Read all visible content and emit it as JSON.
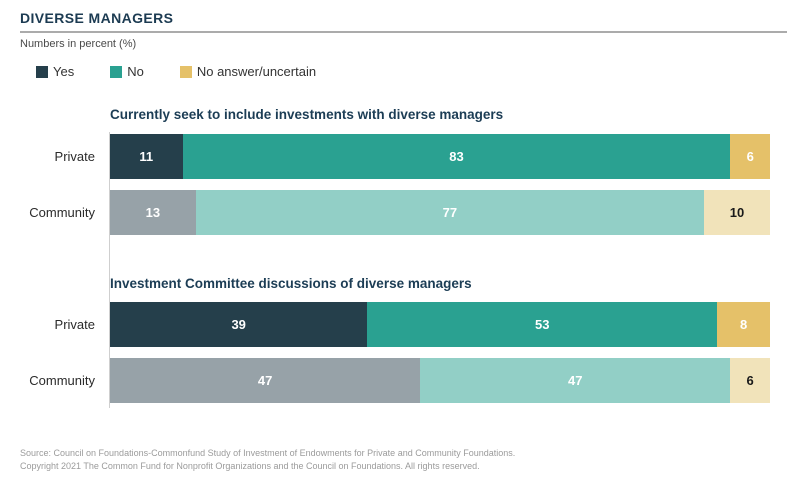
{
  "header": {
    "title": "DIVERSE MANAGERS",
    "subtitle": "Numbers in percent (%)"
  },
  "legend": {
    "items": [
      {
        "label": "Yes",
        "color": "#253f4b"
      },
      {
        "label": "No",
        "color": "#2aa191"
      },
      {
        "label": "No answer/uncertain",
        "color": "#e5c169"
      }
    ]
  },
  "chart_data": {
    "type": "bar",
    "orientation": "horizontal-stacked",
    "title": "DIVERSE MANAGERS",
    "subtitle": "Numbers in percent (%)",
    "xlim": [
      0,
      100
    ],
    "legend_position": "top-left",
    "grid": false,
    "legend": [
      "Yes",
      "No",
      "No answer/uncertain"
    ],
    "sections": [
      {
        "title": "Currently seek to include investments with diverse managers",
        "rows": [
          {
            "label": "Private",
            "values": [
              11,
              83,
              6
            ],
            "colors": [
              "#253f4b",
              "#2aa191",
              "#e5c169"
            ],
            "value_colors": [
              "#ffffff",
              "#ffffff",
              "#ffffff"
            ]
          },
          {
            "label": "Community",
            "values": [
              13,
              77,
              10
            ],
            "colors": [
              "#97a2a8",
              "#92cfc6",
              "#f1e3ba"
            ],
            "value_colors": [
              "#ffffff",
              "#ffffff",
              "#1a1a1a"
            ]
          }
        ]
      },
      {
        "title": "Investment Committee discussions of diverse managers",
        "rows": [
          {
            "label": "Private",
            "values": [
              39,
              53,
              8
            ],
            "colors": [
              "#253f4b",
              "#2aa191",
              "#e5c169"
            ],
            "value_colors": [
              "#ffffff",
              "#ffffff",
              "#ffffff"
            ]
          },
          {
            "label": "Community",
            "values": [
              47,
              47,
              6
            ],
            "colors": [
              "#97a2a8",
              "#92cfc6",
              "#f1e3ba"
            ],
            "value_colors": [
              "#ffffff",
              "#ffffff",
              "#1a1a1a"
            ]
          }
        ]
      }
    ]
  },
  "footer": {
    "line1": "Source:  Council on Foundations-Commonfund Study of  Investment of Endowments for Private and Community Foundations.",
    "line2": "Copyright 2021 The Common Fund for Nonprofit Organizations and the Council on Foundations.  All rights reserved."
  }
}
